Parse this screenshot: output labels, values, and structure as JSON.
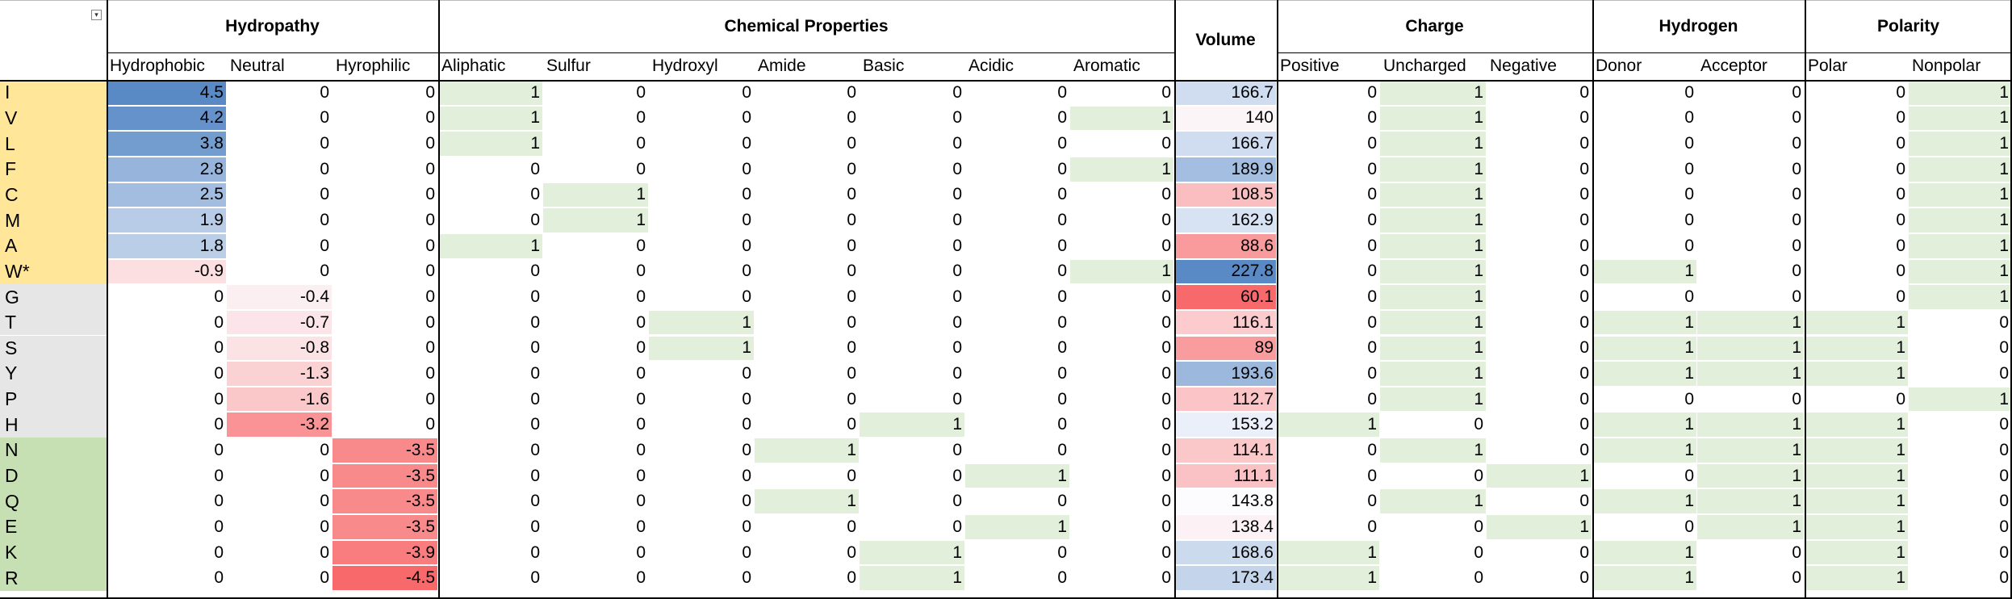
{
  "groups": [
    {
      "name": "Hydropathy",
      "subs": [
        "Hydrophobic",
        "Neutral",
        "Hyrophilic"
      ]
    },
    {
      "name": "Chemical Properties",
      "subs": [
        "Aliphatic",
        "Sulfur",
        "Hydroxyl",
        "Amide",
        "Basic",
        "Acidic",
        "Aromatic"
      ]
    },
    {
      "name": "Volume",
      "subs": [
        ""
      ]
    },
    {
      "name": "Charge",
      "subs": [
        "Positive",
        "Uncharged",
        "Negative"
      ]
    },
    {
      "name": "Hydrogen",
      "subs": [
        "Donor",
        "Acceptor"
      ]
    },
    {
      "name": "Polarity",
      "subs": [
        "Polar",
        "Nonpolar"
      ]
    }
  ],
  "filter_icon": "filter-dropdown-icon",
  "colors": {
    "hydrophobic_label_bg": "#FFE699",
    "neutral_label_bg": "#E7E6E6",
    "hydrophilic_label_bg": "#C6E0B4",
    "binary_fill": "#E2EFDA",
    "scale_blue": "#5A8AC6",
    "scale_white": "#FCFCFF",
    "scale_red": "#F8696B"
  },
  "rows": [
    {
      "label": "I",
      "cls": "hydrophobic",
      "values": [
        "4.5",
        "0",
        "0",
        "1",
        "0",
        "0",
        "0",
        "0",
        "0",
        "0",
        "166.7",
        "0",
        "1",
        "0",
        "0",
        "0",
        "0",
        "1"
      ]
    },
    {
      "label": "V",
      "cls": "hydrophobic",
      "values": [
        "4.2",
        "0",
        "0",
        "1",
        "0",
        "0",
        "0",
        "0",
        "0",
        "1",
        "140",
        "0",
        "1",
        "0",
        "0",
        "0",
        "0",
        "1"
      ]
    },
    {
      "label": "L",
      "cls": "hydrophobic",
      "values": [
        "3.8",
        "0",
        "0",
        "1",
        "0",
        "0",
        "0",
        "0",
        "0",
        "0",
        "166.7",
        "0",
        "1",
        "0",
        "0",
        "0",
        "0",
        "1"
      ]
    },
    {
      "label": "F",
      "cls": "hydrophobic",
      "values": [
        "2.8",
        "0",
        "0",
        "0",
        "0",
        "0",
        "0",
        "0",
        "0",
        "1",
        "189.9",
        "0",
        "1",
        "0",
        "0",
        "0",
        "0",
        "1"
      ]
    },
    {
      "label": "C",
      "cls": "hydrophobic",
      "values": [
        "2.5",
        "0",
        "0",
        "0",
        "1",
        "0",
        "0",
        "0",
        "0",
        "0",
        "108.5",
        "0",
        "1",
        "0",
        "0",
        "0",
        "0",
        "1"
      ]
    },
    {
      "label": "M",
      "cls": "hydrophobic",
      "values": [
        "1.9",
        "0",
        "0",
        "0",
        "1",
        "0",
        "0",
        "0",
        "0",
        "0",
        "162.9",
        "0",
        "1",
        "0",
        "0",
        "0",
        "0",
        "1"
      ]
    },
    {
      "label": "A",
      "cls": "hydrophobic",
      "values": [
        "1.8",
        "0",
        "0",
        "1",
        "0",
        "0",
        "0",
        "0",
        "0",
        "0",
        "88.6",
        "0",
        "1",
        "0",
        "0",
        "0",
        "0",
        "1"
      ]
    },
    {
      "label": "W*",
      "cls": "hydrophobic",
      "values": [
        "-0.9",
        "0",
        "0",
        "0",
        "0",
        "0",
        "0",
        "0",
        "0",
        "1",
        "227.8",
        "0",
        "1",
        "0",
        "1",
        "0",
        "0",
        "1"
      ]
    },
    {
      "label": "G",
      "cls": "neutral",
      "values": [
        "0",
        "-0.4",
        "0",
        "0",
        "0",
        "0",
        "0",
        "0",
        "0",
        "0",
        "60.1",
        "0",
        "1",
        "0",
        "0",
        "0",
        "0",
        "1"
      ]
    },
    {
      "label": "T",
      "cls": "neutral",
      "values": [
        "0",
        "-0.7",
        "0",
        "0",
        "0",
        "1",
        "0",
        "0",
        "0",
        "0",
        "116.1",
        "0",
        "1",
        "0",
        "1",
        "1",
        "1",
        "0"
      ]
    },
    {
      "label": "S",
      "cls": "neutral",
      "values": [
        "0",
        "-0.8",
        "0",
        "0",
        "0",
        "1",
        "0",
        "0",
        "0",
        "0",
        "89",
        "0",
        "1",
        "0",
        "1",
        "1",
        "1",
        "0"
      ]
    },
    {
      "label": "Y",
      "cls": "neutral",
      "values": [
        "0",
        "-1.3",
        "0",
        "0",
        "0",
        "0",
        "0",
        "0",
        "0",
        "0",
        "193.6",
        "0",
        "1",
        "0",
        "1",
        "1",
        "1",
        "0"
      ]
    },
    {
      "label": "P",
      "cls": "neutral",
      "values": [
        "0",
        "-1.6",
        "0",
        "0",
        "0",
        "0",
        "0",
        "0",
        "0",
        "0",
        "112.7",
        "0",
        "1",
        "0",
        "0",
        "0",
        "0",
        "1"
      ]
    },
    {
      "label": "H",
      "cls": "neutral",
      "values": [
        "0",
        "-3.2",
        "0",
        "0",
        "0",
        "0",
        "0",
        "1",
        "0",
        "0",
        "153.2",
        "1",
        "0",
        "0",
        "1",
        "1",
        "1",
        "0"
      ]
    },
    {
      "label": "N",
      "cls": "hydrophilic",
      "values": [
        "0",
        "0",
        "-3.5",
        "0",
        "0",
        "0",
        "1",
        "0",
        "0",
        "0",
        "114.1",
        "0",
        "1",
        "0",
        "1",
        "1",
        "1",
        "0"
      ]
    },
    {
      "label": "D",
      "cls": "hydrophilic",
      "values": [
        "0",
        "0",
        "-3.5",
        "0",
        "0",
        "0",
        "0",
        "0",
        "1",
        "0",
        "111.1",
        "0",
        "0",
        "1",
        "0",
        "1",
        "1",
        "0"
      ]
    },
    {
      "label": "Q",
      "cls": "hydrophilic",
      "values": [
        "0",
        "0",
        "-3.5",
        "0",
        "0",
        "0",
        "1",
        "0",
        "0",
        "0",
        "143.8",
        "0",
        "1",
        "0",
        "1",
        "1",
        "1",
        "0"
      ]
    },
    {
      "label": "E",
      "cls": "hydrophilic",
      "values": [
        "0",
        "0",
        "-3.5",
        "0",
        "0",
        "0",
        "0",
        "0",
        "1",
        "0",
        "138.4",
        "0",
        "0",
        "1",
        "0",
        "1",
        "1",
        "0"
      ]
    },
    {
      "label": "K",
      "cls": "hydrophilic",
      "values": [
        "0",
        "0",
        "-3.9",
        "0",
        "0",
        "0",
        "0",
        "1",
        "0",
        "0",
        "168.6",
        "1",
        "0",
        "0",
        "1",
        "0",
        "1",
        "0"
      ]
    },
    {
      "label": "R",
      "cls": "hydrophilic",
      "values": [
        "0",
        "0",
        "-4.5",
        "0",
        "0",
        "0",
        "0",
        "1",
        "0",
        "0",
        "173.4",
        "1",
        "0",
        "0",
        "1",
        "0",
        "1",
        "0"
      ]
    }
  ]
}
